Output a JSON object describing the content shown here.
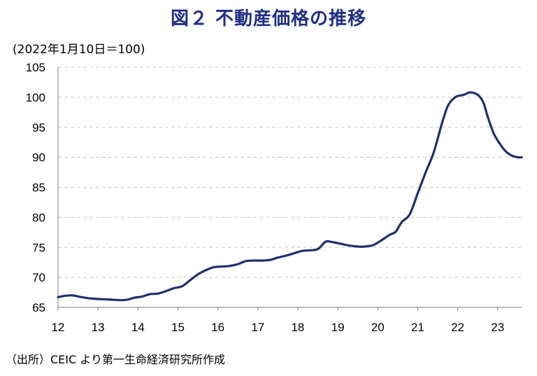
{
  "chart_data": {
    "type": "line",
    "title": "図２ 不動産価格の推移",
    "ylabel": "(2022年1月10日＝100)",
    "source": "（出所）CEIC より第一生命経済研究所作成",
    "ylim": [
      65,
      105
    ],
    "yticks": [
      "105",
      "100",
      "95",
      "90",
      "85",
      "80",
      "75",
      "70",
      "65"
    ],
    "xlim": [
      2012,
      2023.6
    ],
    "xticks": [
      "12",
      "13",
      "14",
      "15",
      "16",
      "17",
      "18",
      "19",
      "20",
      "21",
      "22",
      "23"
    ],
    "grid": true,
    "line_color": "#1f2f6e",
    "series": [
      {
        "name": "",
        "x": [
          2012.0,
          2012.15,
          2012.35,
          2012.6,
          2012.8,
          2013.0,
          2013.3,
          2013.6,
          2013.75,
          2013.9,
          2014.1,
          2014.3,
          2014.5,
          2014.7,
          2014.9,
          2015.1,
          2015.3,
          2015.5,
          2015.7,
          2015.9,
          2016.1,
          2016.3,
          2016.5,
          2016.7,
          2016.9,
          2017.1,
          2017.3,
          2017.5,
          2017.7,
          2017.9,
          2018.1,
          2018.3,
          2018.5,
          2018.65,
          2018.72,
          2018.85,
          2019.0,
          2019.2,
          2019.4,
          2019.6,
          2019.75,
          2019.9,
          2020.1,
          2020.3,
          2020.45,
          2020.6,
          2020.8,
          2021.0,
          2021.2,
          2021.4,
          2021.6,
          2021.75,
          2021.9,
          2022.0,
          2022.15,
          2022.3,
          2022.45,
          2022.55,
          2022.65,
          2022.75,
          2022.9,
          2023.05,
          2023.2,
          2023.35,
          2023.5,
          2023.6
        ],
        "values": [
          66.7,
          66.9,
          67.0,
          66.7,
          66.5,
          66.4,
          66.3,
          66.2,
          66.3,
          66.6,
          66.8,
          67.2,
          67.3,
          67.7,
          68.2,
          68.5,
          69.5,
          70.5,
          71.2,
          71.7,
          71.8,
          71.9,
          72.2,
          72.7,
          72.8,
          72.8,
          72.9,
          73.3,
          73.6,
          74.0,
          74.4,
          74.5,
          74.7,
          75.7,
          76.0,
          75.9,
          75.7,
          75.4,
          75.2,
          75.1,
          75.2,
          75.4,
          76.2,
          77.1,
          77.6,
          79.2,
          80.5,
          84.0,
          87.5,
          90.8,
          95.5,
          98.5,
          99.8,
          100.2,
          100.4,
          100.8,
          100.6,
          100.1,
          99.0,
          96.8,
          94.0,
          92.3,
          91.0,
          90.3,
          90.0,
          90.0
        ]
      }
    ]
  }
}
